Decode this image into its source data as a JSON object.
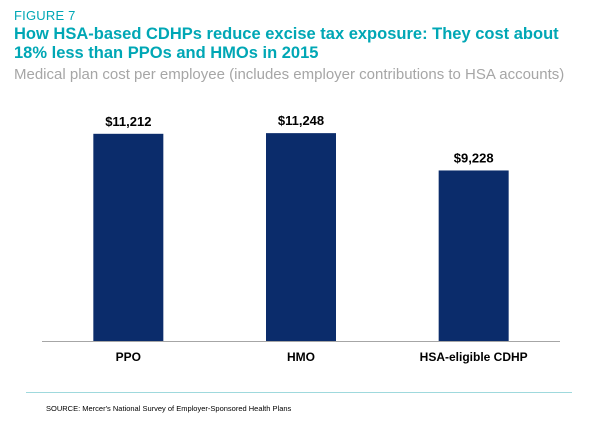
{
  "figure_label": "FIGURE 7",
  "source": "SOURCE: Mercer's National Survey of Employer-Sponsored Health Plans",
  "chart_data": {
    "type": "bar",
    "title": "How HSA-based CDHPs reduce excise tax exposure:  They cost about 18% less than PPOs and HMOs in 2015",
    "subtitle": "Medical plan cost per employee (includes employer contributions to HSA accounts)",
    "categories": [
      "PPO",
      "HMO",
      "HSA-eligible CDHP"
    ],
    "values": [
      11212,
      11248,
      9228
    ],
    "data_labels": [
      "$11,212",
      "$11,248",
      "$9,228"
    ],
    "xlabel": "",
    "ylabel": "",
    "ylim": [
      0,
      12500
    ],
    "grid": false,
    "colors": {
      "bar": "#0b2c6b",
      "accent": "#00a7b5"
    }
  }
}
